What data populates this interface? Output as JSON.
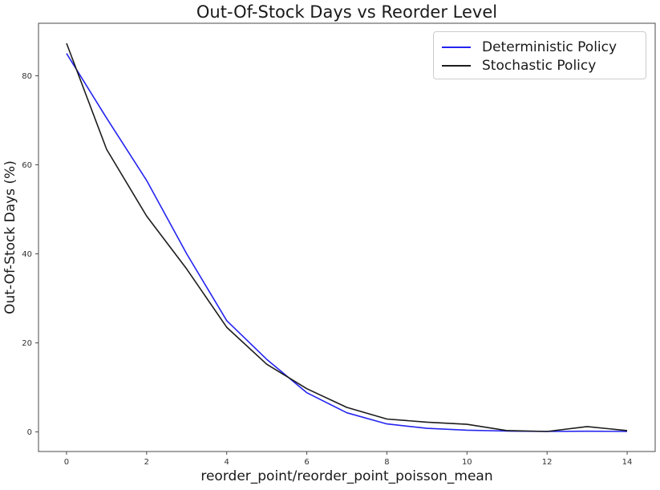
{
  "figure": {
    "background": "#ffffff",
    "axis_color": "#4a4a4a",
    "tick_label_color": "#333333",
    "text_color": "#1a1a1a"
  },
  "chart_data": {
    "type": "line",
    "title": "Out-Of-Stock Days vs Reorder Level",
    "xlabel": "reorder_point/reorder_point_poisson_mean",
    "ylabel": "Out-Of-Stock Days (%)",
    "grid": false,
    "legend_position": "upper right",
    "x": [
      0,
      1,
      2,
      3,
      4,
      5,
      6,
      7,
      8,
      9,
      10,
      11,
      12,
      13,
      14
    ],
    "series": [
      {
        "name": "Deterministic Policy",
        "color": "#2424f0",
        "values": [
          85,
          70.5,
          56.5,
          40,
          25,
          16.3,
          8.8,
          4.3,
          1.8,
          0.8,
          0.4,
          0.2,
          0.1,
          0.15,
          0.1
        ]
      },
      {
        "name": "Stochastic Policy",
        "color": "#1c1c1c",
        "values": [
          87.3,
          63.5,
          48.5,
          36.6,
          23.5,
          15.2,
          9.7,
          5.5,
          2.9,
          2.2,
          1.7,
          0.3,
          0.1,
          1.2,
          0.3
        ]
      }
    ],
    "xticks": [
      0,
      2,
      4,
      6,
      8,
      10,
      12,
      14
    ],
    "yticks": [
      0,
      20,
      40,
      60,
      80
    ],
    "xlim": [
      -0.7,
      14.7
    ],
    "ylim": [
      -4.4,
      91.8
    ]
  }
}
